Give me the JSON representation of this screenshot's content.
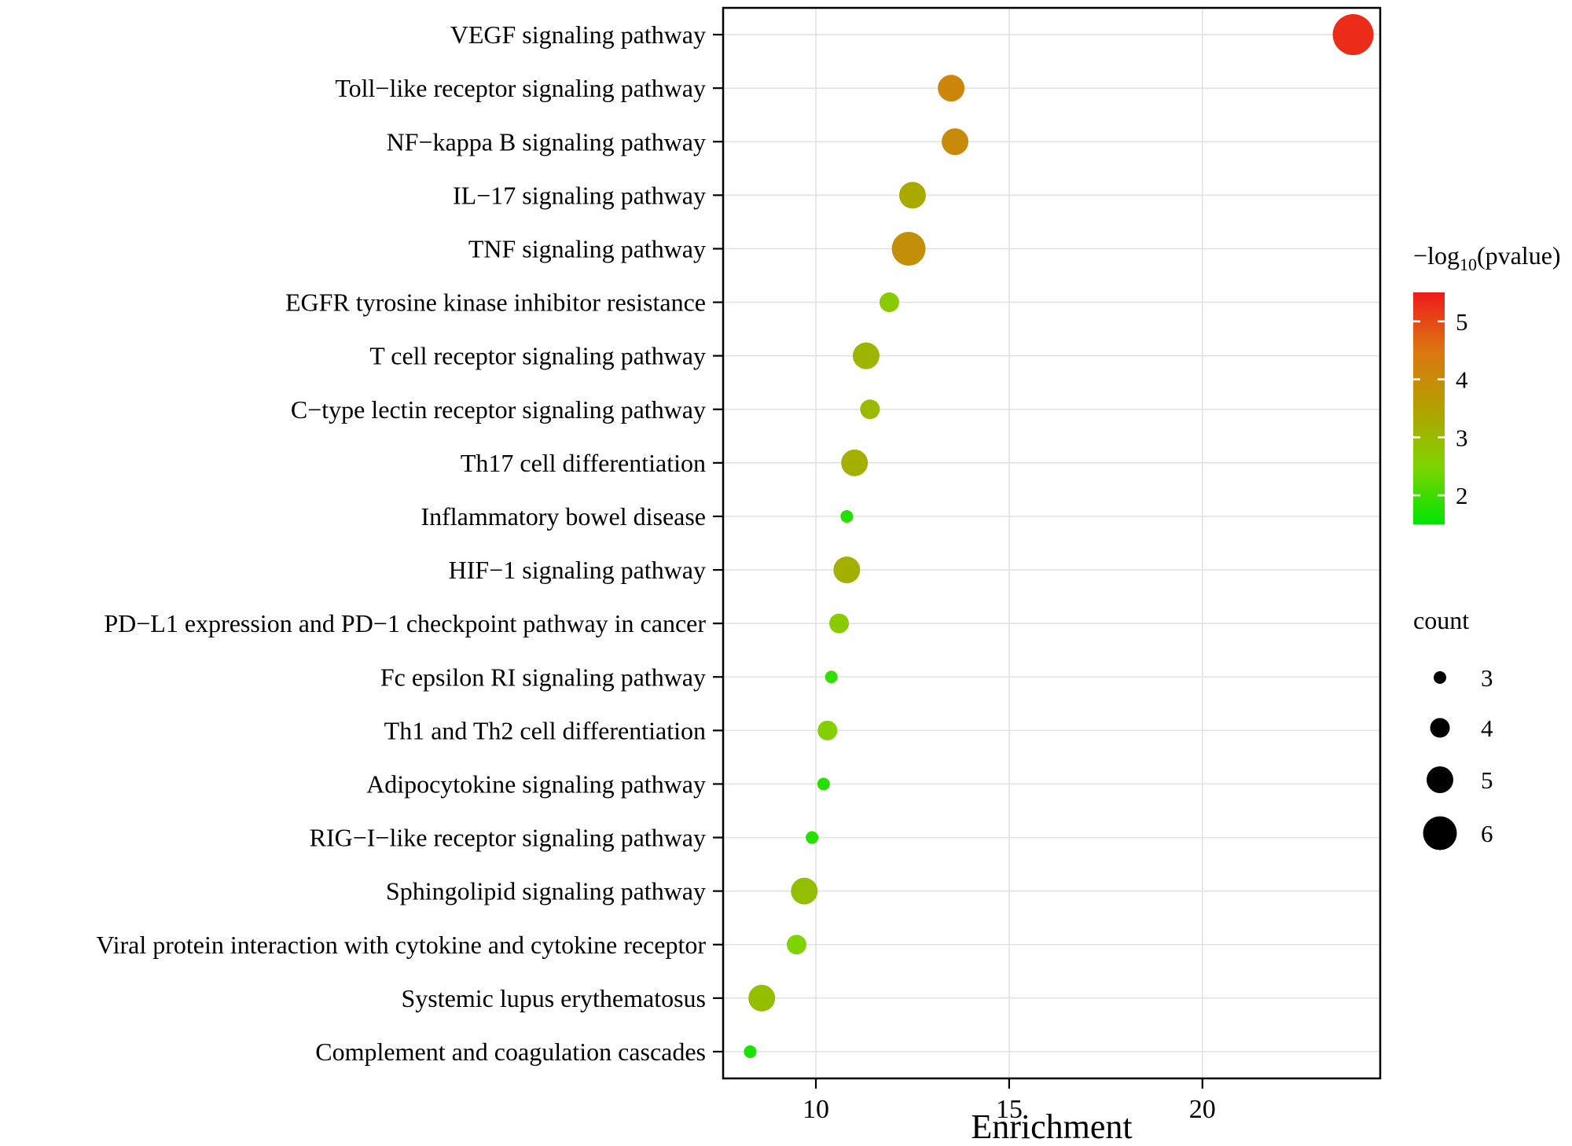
{
  "figure": {
    "background": "#ffffff"
  },
  "chart_data": {
    "type": "scatter",
    "chart_kind": "pathway-enrichment-bubble-plot",
    "title": "",
    "xlabel": "Enrichment",
    "ylabel": "",
    "x_ticks": [
      10,
      15,
      20
    ],
    "x_range": [
      7.6,
      24.6
    ],
    "grid": true,
    "points": [
      {
        "pathway": "VEGF signaling pathway",
        "enrichment": 23.9,
        "neg_log10_pvalue": 5.3,
        "count": 7
      },
      {
        "pathway": "Toll−like receptor signaling pathway",
        "enrichment": 13.5,
        "neg_log10_pvalue": 4.1,
        "count": 5
      },
      {
        "pathway": "NF−kappa B signaling pathway",
        "enrichment": 13.6,
        "neg_log10_pvalue": 4.0,
        "count": 5
      },
      {
        "pathway": "IL−17 signaling pathway",
        "enrichment": 12.5,
        "neg_log10_pvalue": 3.3,
        "count": 5
      },
      {
        "pathway": "TNF signaling pathway",
        "enrichment": 12.4,
        "neg_log10_pvalue": 3.9,
        "count": 6
      },
      {
        "pathway": "EGFR tyrosine kinase inhibitor resistance",
        "enrichment": 11.9,
        "neg_log10_pvalue": 2.7,
        "count": 4
      },
      {
        "pathway": "T cell receptor signaling pathway",
        "enrichment": 11.3,
        "neg_log10_pvalue": 3.1,
        "count": 5
      },
      {
        "pathway": "C−type lectin receptor signaling pathway",
        "enrichment": 11.4,
        "neg_log10_pvalue": 3.0,
        "count": 4
      },
      {
        "pathway": "Th17 cell differentiation",
        "enrichment": 11.0,
        "neg_log10_pvalue": 3.2,
        "count": 5
      },
      {
        "pathway": "Inflammatory bowel disease",
        "enrichment": 10.8,
        "neg_log10_pvalue": 1.8,
        "count": 3
      },
      {
        "pathway": "HIF−1 signaling pathway",
        "enrichment": 10.8,
        "neg_log10_pvalue": 3.2,
        "count": 5
      },
      {
        "pathway": "PD−L1 expression and PD−1 checkpoint pathway in cancer",
        "enrichment": 10.6,
        "neg_log10_pvalue": 2.7,
        "count": 4
      },
      {
        "pathway": "Fc epsilon RI signaling pathway",
        "enrichment": 10.4,
        "neg_log10_pvalue": 1.9,
        "count": 3
      },
      {
        "pathway": "Th1 and Th2 cell differentiation",
        "enrichment": 10.3,
        "neg_log10_pvalue": 2.6,
        "count": 4
      },
      {
        "pathway": "Adipocytokine signaling pathway",
        "enrichment": 10.2,
        "neg_log10_pvalue": 1.8,
        "count": 3
      },
      {
        "pathway": "RIG−I−like receptor signaling pathway",
        "enrichment": 9.9,
        "neg_log10_pvalue": 1.8,
        "count": 3
      },
      {
        "pathway": "Sphingolipid signaling pathway",
        "enrichment": 9.7,
        "neg_log10_pvalue": 2.9,
        "count": 5
      },
      {
        "pathway": "Viral protein interaction with cytokine and cytokine receptor",
        "enrichment": 9.5,
        "neg_log10_pvalue": 2.5,
        "count": 4
      },
      {
        "pathway": "Systemic lupus erythematosus",
        "enrichment": 8.6,
        "neg_log10_pvalue": 2.9,
        "count": 5
      },
      {
        "pathway": "Complement and coagulation cascades",
        "enrichment": 8.3,
        "neg_log10_pvalue": 1.7,
        "count": 3
      }
    ],
    "color_legend": {
      "title_prefix": "−log",
      "title_sub": "10",
      "title_suffix": "(pvalue)",
      "ticks": [
        5,
        4,
        3,
        2
      ],
      "value_range": [
        1.5,
        5.5
      ],
      "gradient_stops": [
        "#00e400",
        "#7fd400",
        "#b3a000",
        "#dc7612",
        "#ef1a1a"
      ]
    },
    "size_legend": {
      "title": "count",
      "items": [
        3,
        4,
        5,
        6
      ]
    }
  }
}
